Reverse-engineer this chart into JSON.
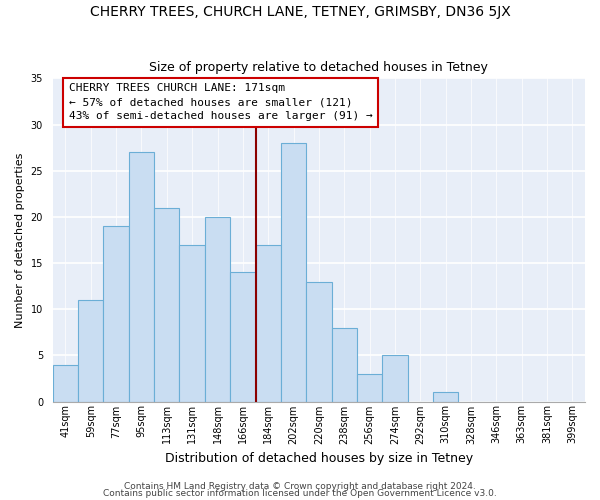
{
  "title": "CHERRY TREES, CHURCH LANE, TETNEY, GRIMSBY, DN36 5JX",
  "subtitle": "Size of property relative to detached houses in Tetney",
  "xlabel": "Distribution of detached houses by size in Tetney",
  "ylabel": "Number of detached properties",
  "bar_labels": [
    "41sqm",
    "59sqm",
    "77sqm",
    "95sqm",
    "113sqm",
    "131sqm",
    "148sqm",
    "166sqm",
    "184sqm",
    "202sqm",
    "220sqm",
    "238sqm",
    "256sqm",
    "274sqm",
    "292sqm",
    "310sqm",
    "328sqm",
    "346sqm",
    "363sqm",
    "381sqm",
    "399sqm"
  ],
  "bar_values": [
    4,
    11,
    19,
    27,
    21,
    17,
    20,
    14,
    17,
    28,
    13,
    8,
    3,
    5,
    0,
    1,
    0,
    0,
    0,
    0,
    0
  ],
  "bar_color": "#c9ddf2",
  "bar_edge_color": "#6baed6",
  "vline_color": "#8b0000",
  "annotation_line1": "CHERRY TREES CHURCH LANE: 171sqm",
  "annotation_line2": "← 57% of detached houses are smaller (121)",
  "annotation_line3": "43% of semi-detached houses are larger (91) →",
  "ylim": [
    0,
    35
  ],
  "yticks": [
    0,
    5,
    10,
    15,
    20,
    25,
    30,
    35
  ],
  "footer1": "Contains HM Land Registry data © Crown copyright and database right 2024.",
  "footer2": "Contains public sector information licensed under the Open Government Licence v3.0.",
  "plot_bg_color": "#e8eef8",
  "fig_bg_color": "#ffffff",
  "grid_color": "#ffffff",
  "title_fontsize": 10,
  "subtitle_fontsize": 9,
  "xlabel_fontsize": 9,
  "ylabel_fontsize": 8,
  "tick_fontsize": 7,
  "annotation_fontsize": 8,
  "footer_fontsize": 6.5
}
